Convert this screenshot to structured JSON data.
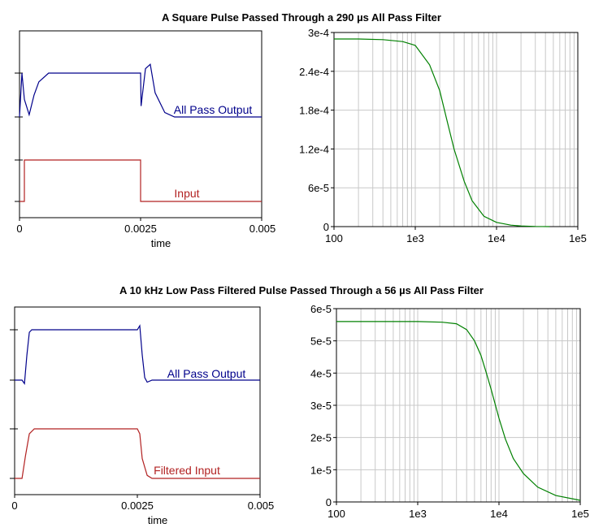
{
  "chart_data": [
    {
      "type": "line",
      "title": "A Square Pulse Passed Through a 290 µs All Pass Filter",
      "xlabel": "time",
      "ylabel": "",
      "xlim": [
        0,
        0.005
      ],
      "x_ticks": [
        "0",
        "0.0025",
        "0.005"
      ],
      "grid": false,
      "series": [
        {
          "name": "All Pass Output",
          "color": "#00008b",
          "x": [
            0,
            5e-05,
            0.0001,
            0.0002,
            0.0003,
            0.0004,
            0.0006,
            0.0025,
            0.00251,
            0.0026,
            0.0027,
            0.0028,
            0.003,
            0.0032,
            0.005
          ],
          "y": [
            0,
            1.0,
            0.4,
            0.05,
            0.5,
            0.8,
            1.0,
            1.0,
            0.25,
            1.1,
            1.2,
            0.55,
            0.1,
            0,
            0
          ]
        },
        {
          "name": "Input",
          "color": "#b22222",
          "x": [
            0,
            0.0001,
            0.0001,
            0.0025,
            0.0025,
            0.005
          ],
          "y": [
            0,
            0,
            1,
            1,
            0,
            0
          ]
        }
      ]
    },
    {
      "type": "line",
      "title": "",
      "xscale": "log",
      "xlim": [
        100,
        100000
      ],
      "x_ticks": [
        "100",
        "1e3",
        "1e4",
        "1e5"
      ],
      "ylim": [
        0,
        0.0003
      ],
      "y_ticks": [
        "0",
        "6e-5",
        "1.2e-4",
        "1.8e-4",
        "2.4e-4",
        "3e-4"
      ],
      "grid": true,
      "series": [
        {
          "name": "",
          "color": "#008000",
          "x": [
            100,
            200,
            400,
            700,
            1000,
            1500,
            2000,
            2500,
            3000,
            4000,
            5000,
            7000,
            10000,
            15000,
            20000,
            30000,
            45000
          ],
          "y": [
            0.00029,
            0.00029,
            0.000289,
            0.000286,
            0.00028,
            0.00025,
            0.00021,
            0.00016,
            0.00012,
            7e-05,
            4e-05,
            1.6e-05,
            6.5e-06,
            2.2e-06,
            1e-06,
            3e-07,
            0.0
          ]
        }
      ]
    },
    {
      "type": "line",
      "title": "A 10 kHz Low Pass Filtered Pulse Passed Through a 56 µs All Pass Filter",
      "xlabel": "time",
      "ylabel": "",
      "xlim": [
        0,
        0.005
      ],
      "x_ticks": [
        "0",
        "0.0025",
        "0.005"
      ],
      "grid": false,
      "series": [
        {
          "name": "All Pass Output",
          "color": "#00008b",
          "x": [
            0,
            0.00015,
            0.0002,
            0.00025,
            0.0003,
            0.00035,
            0.0025,
            0.00255,
            0.0026,
            0.00265,
            0.0027,
            0.0028,
            0.005
          ],
          "y": [
            0,
            0,
            -0.07,
            0.5,
            0.95,
            1.0,
            1.0,
            1.08,
            0.5,
            0.05,
            -0.04,
            0,
            0
          ]
        },
        {
          "name": "Filtered Input",
          "color": "#b22222",
          "x": [
            0,
            0.00015,
            0.00022,
            0.0003,
            0.0004,
            0.0025,
            0.00255,
            0.0026,
            0.0027,
            0.0028,
            0.005
          ],
          "y": [
            0,
            0,
            0.45,
            0.9,
            1.0,
            1.0,
            0.9,
            0.4,
            0.06,
            0,
            0
          ]
        }
      ]
    },
    {
      "type": "line",
      "title": "",
      "xscale": "log",
      "xlim": [
        100,
        100000
      ],
      "x_ticks": [
        "100",
        "1e3",
        "1e4",
        "1e5"
      ],
      "ylim": [
        0,
        6e-05
      ],
      "y_ticks": [
        "0",
        "1e-5",
        "2e-5",
        "3e-5",
        "4e-5",
        "5e-5",
        "6e-5"
      ],
      "grid": true,
      "series": [
        {
          "name": "",
          "color": "#008000",
          "x": [
            100,
            500,
            1000,
            2000,
            3000,
            4000,
            5000,
            6000,
            7000,
            8000,
            10000,
            12000,
            15000,
            20000,
            30000,
            50000,
            100000
          ],
          "y": [
            5.6e-05,
            5.6e-05,
            5.6e-05,
            5.58e-05,
            5.53e-05,
            5.35e-05,
            5e-05,
            4.55e-05,
            4e-05,
            3.5e-05,
            2.6e-05,
            1.95e-05,
            1.35e-05,
            8.8e-06,
            4.6e-06,
            2e-06,
            5e-07
          ]
        }
      ]
    }
  ]
}
